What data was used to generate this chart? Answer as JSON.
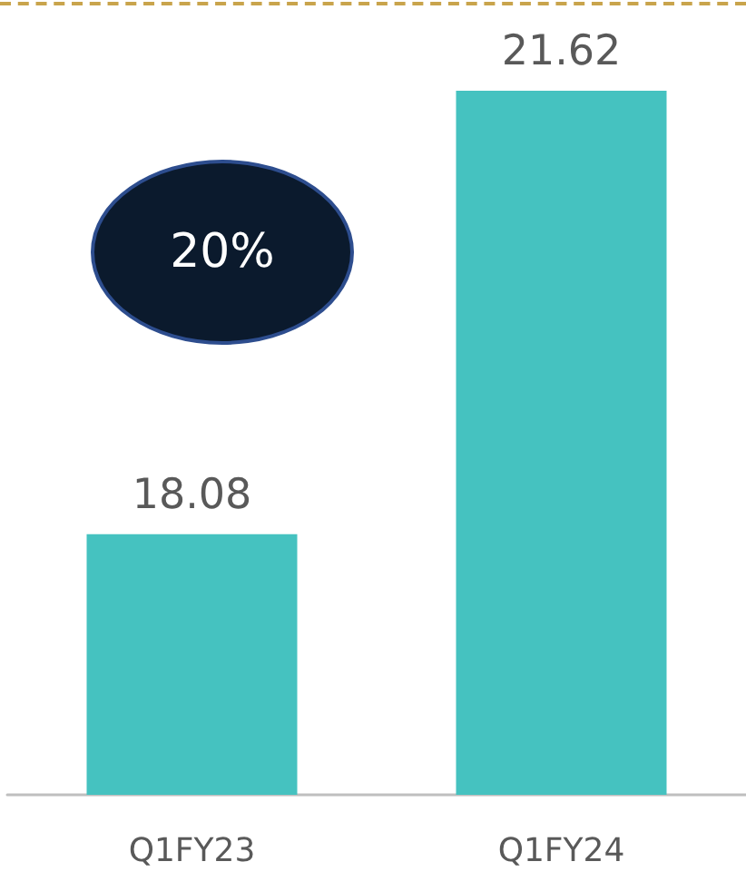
{
  "chart_data": {
    "type": "bar",
    "categories": [
      "Q1FY23",
      "Q1FY24"
    ],
    "values": [
      18.08,
      21.62
    ],
    "color": "#45c2c0",
    "data_labels": true,
    "ylim": [
      16,
      21.62
    ],
    "tick_labels": "x",
    "annotations": [
      "20%"
    ]
  }
}
